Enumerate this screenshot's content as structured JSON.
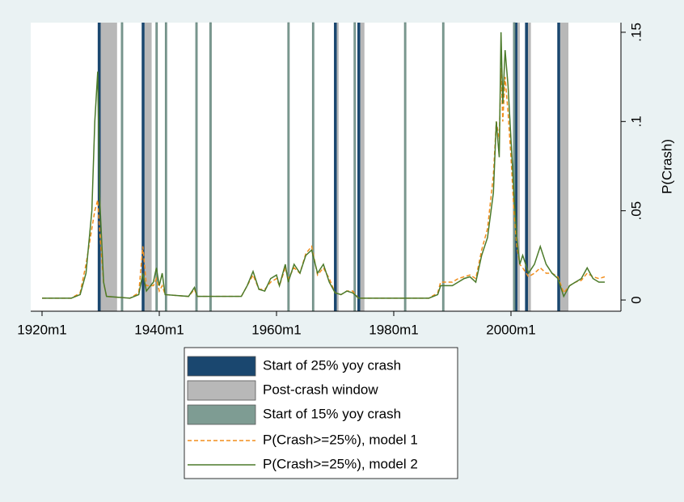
{
  "chart_data": {
    "type": "line",
    "y_label": "P(Crash)",
    "x": [
      1920,
      1925,
      1926.5,
      1927.5,
      1928.5,
      1929,
      1929.5,
      1929.8,
      1930.5,
      1931,
      1935,
      1936.5,
      1937.2,
      1937.8,
      1939,
      1939.5,
      1940,
      1940.5,
      1941,
      1945,
      1946,
      1946.5,
      1954,
      1955,
      1956,
      1957,
      1958,
      1959,
      1960,
      1960.5,
      1961.5,
      1962,
      1963,
      1964,
      1965,
      1966,
      1967,
      1968,
      1969,
      1970,
      1971,
      1972,
      1973,
      1974,
      1986,
      1987.5,
      1988,
      1990,
      1991,
      1992,
      1993,
      1994,
      1995,
      1996,
      1997,
      1997.5,
      1998,
      1998.3,
      1998.6,
      1999,
      1999.5,
      2000,
      2000.5,
      2001,
      2001.5,
      2002,
      2003,
      2004,
      2005,
      2006,
      2007,
      2008,
      2009,
      2010,
      2011,
      2012,
      2013,
      2014,
      2015,
      2016
    ],
    "bands": [
      {
        "name": "Start of 25% yoy crash",
        "color": "#1a476f",
        "starts": [
          1929.5,
          1937.0,
          1969.8,
          1973.8,
          2000.6,
          2002.4,
          2007.9
        ],
        "ends": [
          1930.0,
          1937.5,
          1970.3,
          1974.3,
          2001.1,
          2002.9,
          2008.4
        ]
      },
      {
        "name": "Post-crash window",
        "color": "#b8b8b8",
        "starts": [
          1930.0,
          1937.5,
          1970.3,
          1974.3,
          2001.1,
          2002.9,
          2008.4
        ],
        "ends": [
          1932.8,
          1938.7,
          1970.6,
          1975.0,
          2001.5,
          2003.4,
          2009.8
        ]
      },
      {
        "name": "Start of 15% yoy crash",
        "color": "#7e9c93",
        "starts": [
          1933.5,
          1939.4,
          1941.0,
          1946.2,
          1948.6,
          1961.9,
          1966.1,
          1973.2,
          1981.8,
          1988.3,
          2000.4
        ],
        "ends": [
          1933.8,
          1939.7,
          1941.3,
          1946.5,
          1948.9,
          1962.2,
          1966.4,
          1973.5,
          1982.1,
          1988.6,
          2000.7
        ]
      }
    ],
    "series": [
      {
        "name": "P(Crash>=25%), model 1",
        "color": "#f28e1c",
        "style": "dashed",
        "values": [
          0.001,
          0.001,
          0.004,
          0.02,
          0.04,
          0.05,
          0.056,
          0.04,
          0.01,
          0.002,
          0.001,
          0.004,
          0.03,
          0.008,
          0.008,
          0.012,
          0.005,
          0.008,
          0.003,
          0.002,
          0.006,
          0.002,
          0.002,
          0.008,
          0.014,
          0.006,
          0.006,
          0.01,
          0.012,
          0.008,
          0.018,
          0.012,
          0.018,
          0.015,
          0.026,
          0.03,
          0.014,
          0.018,
          0.012,
          0.004,
          0.003,
          0.005,
          0.005,
          0.001,
          0.001,
          0.004,
          0.01,
          0.01,
          0.012,
          0.013,
          0.014,
          0.012,
          0.028,
          0.04,
          0.07,
          0.1,
          0.09,
          0.13,
          0.1,
          0.125,
          0.105,
          0.08,
          0.05,
          0.03,
          0.02,
          0.018,
          0.013,
          0.015,
          0.018,
          0.015,
          0.015,
          0.013,
          0.004,
          0.008,
          0.01,
          0.011,
          0.015,
          0.013,
          0.012,
          0.013
        ]
      },
      {
        "name": "P(Crash>=25%), model 2",
        "color": "#4b7a2a",
        "style": "solid",
        "values": [
          0.001,
          0.001,
          0.003,
          0.015,
          0.05,
          0.1,
          0.128,
          0.06,
          0.01,
          0.002,
          0.001,
          0.003,
          0.015,
          0.005,
          0.01,
          0.018,
          0.008,
          0.015,
          0.003,
          0.002,
          0.007,
          0.002,
          0.002,
          0.008,
          0.016,
          0.006,
          0.005,
          0.012,
          0.014,
          0.008,
          0.02,
          0.01,
          0.02,
          0.015,
          0.025,
          0.028,
          0.015,
          0.02,
          0.01,
          0.004,
          0.003,
          0.005,
          0.004,
          0.001,
          0.001,
          0.003,
          0.008,
          0.008,
          0.01,
          0.012,
          0.013,
          0.01,
          0.025,
          0.035,
          0.06,
          0.1,
          0.08,
          0.15,
          0.11,
          0.14,
          0.12,
          0.09,
          0.06,
          0.035,
          0.02,
          0.025,
          0.015,
          0.02,
          0.03,
          0.02,
          0.015,
          0.012,
          0.002,
          0.008,
          0.01,
          0.012,
          0.018,
          0.012,
          0.01,
          0.01
        ]
      }
    ],
    "xlim": [
      1918.07,
      2018.76
    ],
    "xticks": [
      {
        "value": 1920,
        "label": "1920m1"
      },
      {
        "value": 1940,
        "label": "1940m1"
      },
      {
        "value": 1960,
        "label": "1960m1"
      },
      {
        "value": 1980,
        "label": "1980m1"
      },
      {
        "value": 2000,
        "label": "2000m1"
      }
    ],
    "ylim": [
      -0.0063,
      0.1554
    ],
    "yticks": [
      0,
      {
        "value": 0.05,
        "label": ".05"
      },
      {
        "value": 0.1,
        "label": ".1"
      },
      {
        "value": 0.15,
        "label": ".15"
      }
    ],
    "legend": "bottom"
  }
}
